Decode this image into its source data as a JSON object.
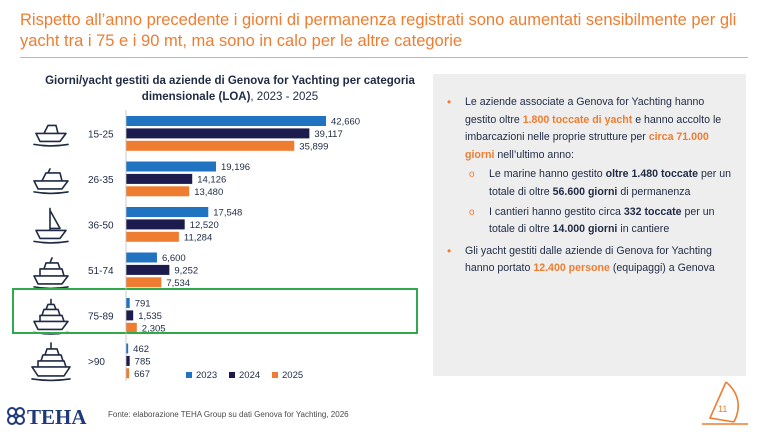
{
  "headline": "Rispetto all’anno precedente i giorni di permanenza registrati sono aumentati sensibilmente per gli yacht tra i 75 e i 90 mt, ma sono in calo per le altre categorie",
  "chart_data": {
    "type": "bar",
    "orientation": "horizontal",
    "title_bold": "Giorni/yacht gestiti da aziende di Genova for Yachting per categoria dimensionale (LOA)",
    "title_rest": ", 2023 - 2025",
    "categories": [
      "15-25",
      "26-35",
      "36-50",
      "51-74",
      "75-89",
      ">90"
    ],
    "series": [
      {
        "name": "2023",
        "color": "#1F73C0",
        "values": [
          42660,
          19196,
          17548,
          6600,
          791,
          462
        ]
      },
      {
        "name": "2024",
        "color": "#1B1B4E",
        "values": [
          39117,
          14126,
          12520,
          9252,
          1535,
          785
        ]
      },
      {
        "name": "2025",
        "color": "#EE7D31",
        "values": [
          35899,
          13480,
          11284,
          7534,
          2305,
          667
        ]
      }
    ],
    "value_labels": [
      [
        "42,660",
        "39,117",
        "35,899"
      ],
      [
        "19,196",
        "14,126",
        "13,480"
      ],
      [
        "17,548",
        "12,520",
        "11,284"
      ],
      [
        "6,600",
        "9,252",
        "7,534"
      ],
      [
        "791",
        "1,535",
        "2,305"
      ],
      [
        "462",
        "785",
        "667"
      ]
    ],
    "xlim": [
      0,
      42660
    ],
    "legend_position": "bottom",
    "highlighted_category": "75-89",
    "highlight_color": "#2EAA4A",
    "icons": [
      "jet-ski-icon",
      "motorboat-icon",
      "sailboat-icon",
      "yacht-icon",
      "superyacht-icon",
      "megayacht-icon"
    ]
  },
  "panel": {
    "b1_t1": "Le aziende associate a Genova for Yachting hanno gestito oltre ",
    "b1_h1": "1.800 toccate di yacht",
    "b1_t2": " e hanno accolto le imbarcazioni nelle proprie strutture per ",
    "b1_h2": "circa 71.000 giorni",
    "b1_t3": " nell’ultimo anno:",
    "s1_t1": "Le marine hanno gestito ",
    "s1_b1": "oltre 1.480 toccate",
    "s1_t2": " per un totale di oltre ",
    "s1_b2": "56.600 giorni",
    "s1_t3": " di permanenza",
    "s2_t1": "I cantieri hanno gestito circa ",
    "s2_b1": "332 toccate",
    "s2_t2": " per un totale di oltre ",
    "s2_b2": "14.000 giorni",
    "s2_t3": " in cantiere",
    "b2_t1": "Gli yacht gestiti dalle aziende di Genova for Yachting hanno portato ",
    "b2_h1": "12.400 persone",
    "b2_t2": " (equipaggi) a Genova",
    "bullet": "•",
    "sub_bullet": "o"
  },
  "footer": {
    "logo": "TEHA",
    "source": "Fonte: elaborazione TEHA Group su dati Genova for Yachting, 2026",
    "page_number": "11"
  }
}
